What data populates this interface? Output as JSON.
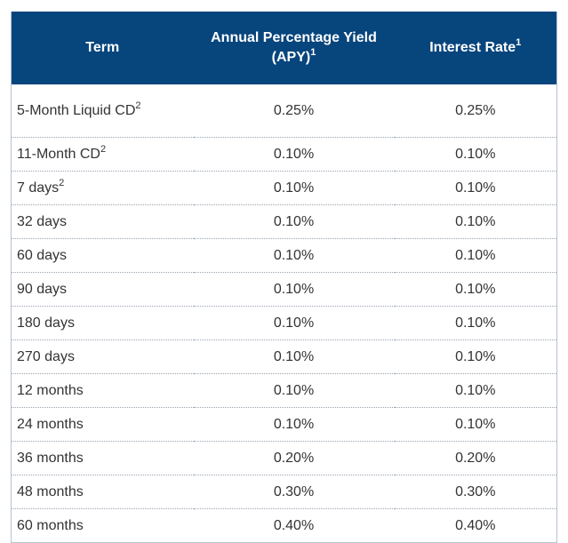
{
  "table": {
    "headers": {
      "term": "Term",
      "apy": "Annual Percentage Yield (APY)",
      "apy_sup": "1",
      "rate": "Interest Rate",
      "rate_sup": "1"
    },
    "rows": [
      {
        "term": "5-Month Liquid CD",
        "term_sup": "2",
        "apy": "0.25%",
        "rate": "0.25%"
      },
      {
        "term": "11-Month CD",
        "term_sup": "2",
        "apy": "0.10%",
        "rate": "0.10%"
      },
      {
        "term": "7 days",
        "term_sup": "2",
        "apy": "0.10%",
        "rate": "0.10%"
      },
      {
        "term": "32 days",
        "term_sup": "",
        "apy": "0.10%",
        "rate": "0.10%"
      },
      {
        "term": "60 days",
        "term_sup": "",
        "apy": "0.10%",
        "rate": "0.10%"
      },
      {
        "term": "90 days",
        "term_sup": "",
        "apy": "0.10%",
        "rate": "0.10%"
      },
      {
        "term": "180 days",
        "term_sup": "",
        "apy": "0.10%",
        "rate": "0.10%"
      },
      {
        "term": "270 days",
        "term_sup": "",
        "apy": "0.10%",
        "rate": "0.10%"
      },
      {
        "term": "12 months",
        "term_sup": "",
        "apy": "0.10%",
        "rate": "0.10%"
      },
      {
        "term": "24 months",
        "term_sup": "",
        "apy": "0.10%",
        "rate": "0.10%"
      },
      {
        "term": "36 months",
        "term_sup": "",
        "apy": "0.20%",
        "rate": "0.20%"
      },
      {
        "term": "48 months",
        "term_sup": "",
        "apy": "0.30%",
        "rate": "0.30%"
      },
      {
        "term": "60 months",
        "term_sup": "",
        "apy": "0.40%",
        "rate": "0.40%"
      }
    ]
  },
  "colors": {
    "header_background": "#07457d",
    "header_text": "#ffffff",
    "body_text": "#333333"
  }
}
